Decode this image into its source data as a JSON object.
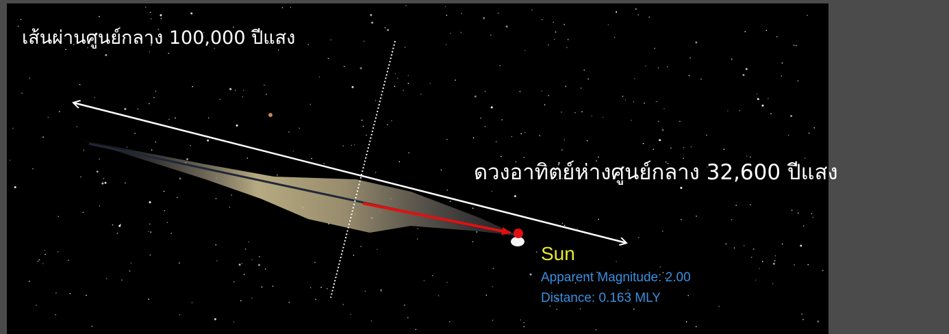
{
  "annotations": {
    "diameter": "เส้นผ่านศูนย์กลาง 100,000 ปีแสง",
    "sun_distance": "ดวงอาทิตย์ห่างศูนย์กลาง 32,600 ปีแสง"
  },
  "info": {
    "name": "Sun",
    "magnitude": "Apparent Magnitude: 2.00",
    "distance": "Distance: 0.163 MLY"
  }
}
